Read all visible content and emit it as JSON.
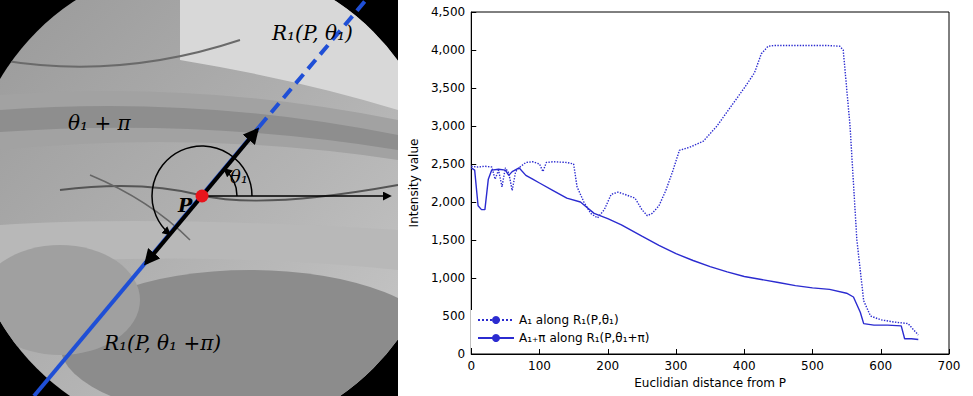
{
  "chart_data": {
    "type": "line",
    "x_label": "Euclidian distance from P",
    "y_label": "Intensity value",
    "xlim": [
      0,
      700
    ],
    "xticks": [
      0,
      100,
      200,
      300,
      400,
      500,
      600,
      700
    ],
    "ylim": [
      0,
      4500
    ],
    "yticks": [
      0,
      500,
      1000,
      1500,
      2000,
      2500,
      3000,
      3500,
      4000,
      4500
    ],
    "grid": false,
    "legend": "lower left",
    "series": [
      {
        "name": "A₁ along R₁(P,θ₁)",
        "color": "#2b2bd0",
        "line_style": "dotted",
        "x": [
          0,
          10,
          20,
          30,
          35,
          40,
          45,
          50,
          55,
          60,
          65,
          70,
          80,
          90,
          100,
          105,
          110,
          120,
          140,
          150,
          155,
          165,
          175,
          185,
          195,
          205,
          215,
          225,
          240,
          250,
          258,
          265,
          275,
          285,
          295,
          305,
          320,
          340,
          360,
          380,
          400,
          415,
          425,
          435,
          445,
          460,
          480,
          500,
          520,
          540,
          545,
          555,
          565,
          575,
          585,
          600,
          620,
          640,
          650,
          655
        ],
        "values": [
          2470,
          2460,
          2470,
          2460,
          2300,
          2420,
          2200,
          2450,
          2380,
          2150,
          2400,
          2450,
          2520,
          2530,
          2500,
          2400,
          2520,
          2530,
          2520,
          2500,
          2200,
          2000,
          1850,
          1790,
          1900,
          2100,
          2130,
          2100,
          2050,
          1900,
          1820,
          1850,
          1950,
          2150,
          2400,
          2680,
          2720,
          2800,
          3000,
          3250,
          3500,
          3700,
          3950,
          4050,
          4060,
          4060,
          4060,
          4060,
          4060,
          4050,
          4000,
          3000,
          1500,
          700,
          500,
          450,
          420,
          400,
          300,
          250
        ]
      },
      {
        "name": "A₁₊π along R₁(P,θ₁+π)",
        "color": "#2b2bd0",
        "line_style": "solid",
        "x": [
          0,
          5,
          10,
          15,
          20,
          25,
          30,
          40,
          50,
          55,
          60,
          70,
          80,
          90,
          100,
          120,
          140,
          160,
          180,
          200,
          220,
          250,
          275,
          300,
          325,
          350,
          375,
          400,
          425,
          450,
          475,
          500,
          525,
          550,
          560,
          570,
          575,
          590,
          610,
          630,
          635,
          645,
          655
        ],
        "values": [
          2450,
          2420,
          1950,
          1900,
          1900,
          2300,
          2420,
          2430,
          2420,
          2350,
          2400,
          2450,
          2350,
          2300,
          2250,
          2150,
          2050,
          2000,
          1850,
          1780,
          1700,
          1550,
          1430,
          1320,
          1230,
          1150,
          1080,
          1020,
          980,
          940,
          900,
          870,
          850,
          800,
          750,
          550,
          400,
          380,
          380,
          370,
          200,
          200,
          190
        ]
      }
    ]
  },
  "image_panel": {
    "labels": {
      "ray_forward": "R₁(P, θ₁)",
      "ray_backward": "R₁(P, θ₁ +π)",
      "angle_forward": "θ₁",
      "angle_backward": "θ₁ + π",
      "point": "P"
    }
  }
}
